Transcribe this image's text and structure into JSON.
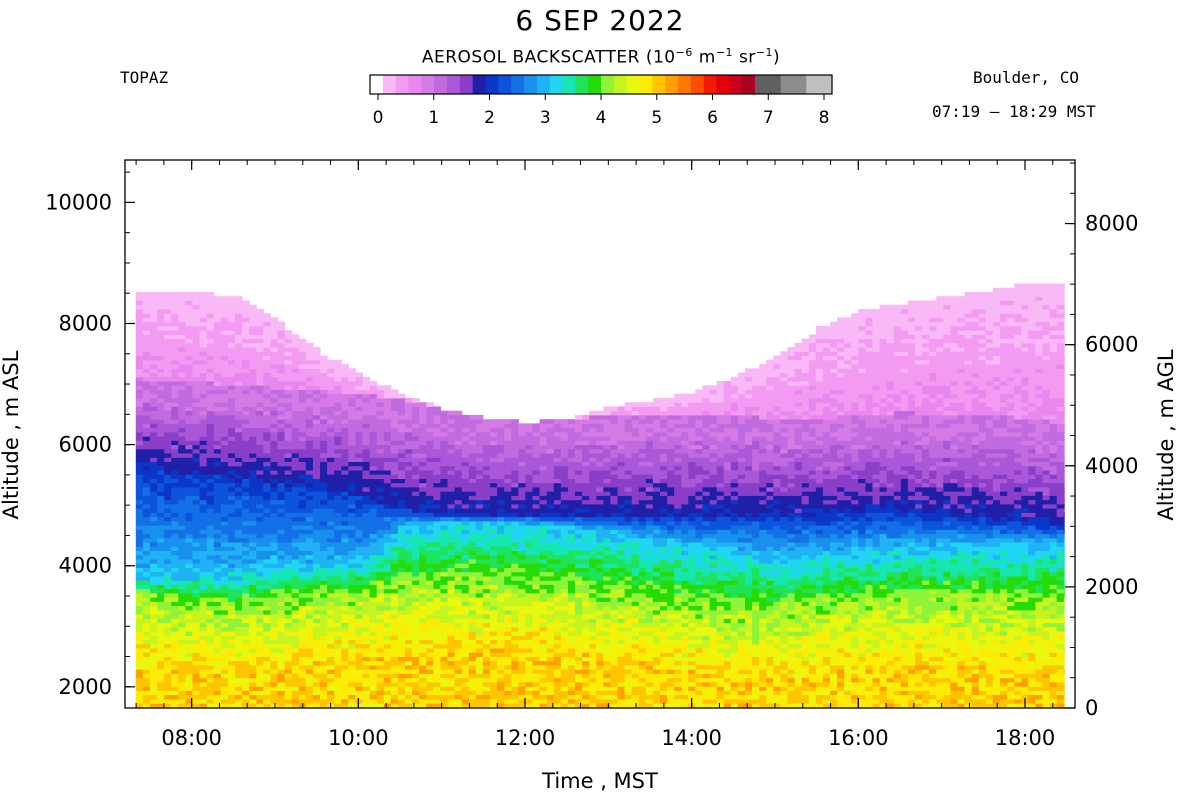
{
  "header": {
    "date_title": "6 SEP 2022",
    "instrument": "TOPAZ",
    "location": "Boulder, CO",
    "time_range": "07:19 – 18:29 MST"
  },
  "colorbar": {
    "title_prefix": "AEROSOL BACKSCATTER (10",
    "title_exp1": "−6",
    "title_mid1": " m",
    "title_exp2": "−1",
    "title_mid2": " sr",
    "title_exp3": "−1",
    "title_suffix": ")",
    "min": 0,
    "max": 8,
    "tick_labels": [
      "0",
      "1",
      "2",
      "3",
      "4",
      "5",
      "6",
      "7",
      "8"
    ],
    "colors": [
      "#ffffff",
      "#f9b9f7",
      "#f39af3",
      "#e987ef",
      "#d67ae6",
      "#c06be0",
      "#aa57d8",
      "#8b3fc8",
      "#1f1fa8",
      "#0a37c8",
      "#0c54dc",
      "#1370e6",
      "#198fee",
      "#1fb2f4",
      "#21d6f2",
      "#16e6b0",
      "#1fe35a",
      "#25db08",
      "#8ff33a",
      "#c4f521",
      "#e8f80f",
      "#ffec05",
      "#ffc500",
      "#ffa000",
      "#ff7800",
      "#ff4d00",
      "#f41a00",
      "#e4000d",
      "#c8001e",
      "#aa0022",
      "#606060",
      "#606060",
      "#8c8c8c",
      "#8c8c8c",
      "#bfbfbf",
      "#bfbfbf"
    ]
  },
  "chart_data": {
    "type": "heatmap",
    "title": "6 SEP 2022",
    "xlabel": "Time , MST",
    "ylabel_left": "Altitude , m ASL",
    "ylabel_right": "Altitude , m AGL",
    "x_range_hours": [
      7.2,
      18.6
    ],
    "x_ticks": [
      "08:00",
      "10:00",
      "12:00",
      "14:00",
      "16:00",
      "18:00"
    ],
    "y_left_range_m": [
      1650,
      10700
    ],
    "y_left_ticks": [
      "2000",
      "4000",
      "6000",
      "8000",
      "10000"
    ],
    "y_right_ticks": [
      "0",
      "2000",
      "4000",
      "6000",
      "8000"
    ],
    "color_scale": "aerosol backscatter 0–8 (10^-6 m^-1 sr^-1)",
    "data_start_time": "07:19",
    "data_end_time": "18:29",
    "layer_profiles": {
      "hours": [
        7.33,
        8,
        8.5,
        9,
        9.5,
        10,
        10.5,
        11,
        11.5,
        12,
        12.5,
        13,
        13.5,
        14,
        14.5,
        15,
        15.5,
        16,
        16.5,
        17,
        17.5,
        18,
        18.45
      ],
      "top_of_data_m": [
        8500,
        8500,
        8400,
        8000,
        7500,
        7100,
        6800,
        6550,
        6400,
        6330,
        6400,
        6600,
        6700,
        6850,
        7100,
        7450,
        7900,
        8200,
        8300,
        8400,
        8500,
        8650,
        8600
      ],
      "residual_layer_top_m": [
        6900,
        6850,
        6800,
        6750,
        6700,
        6650,
        6550,
        6400,
        6300,
        6250,
        6250,
        6300,
        6300,
        6300,
        6300,
        6250,
        6250,
        6300,
        6350,
        6300,
        6300,
        6250,
        6150
      ],
      "blue_layer_bottom_m": [
        5600,
        5500,
        5450,
        5350,
        5250,
        5150,
        4900,
        4800,
        4800,
        4800,
        4800,
        4800,
        4800,
        4800,
        4800,
        4800,
        4800,
        4850,
        4850,
        4800,
        4750,
        4700,
        4600
      ],
      "green_transition_m": [
        3800,
        3800,
        3850,
        3900,
        3950,
        4000,
        4600,
        4700,
        4700,
        4650,
        4600,
        4500,
        4400,
        4300,
        4200,
        4100,
        4150,
        4200,
        4250,
        4300,
        4300,
        4300,
        4300
      ],
      "polluted_top_m": [
        3500,
        3400,
        3350,
        3400,
        3500,
        3600,
        3700,
        3750,
        3750,
        3700,
        3650,
        3550,
        3450,
        3350,
        3300,
        3300,
        3350,
        3400,
        3450,
        3500,
        3450,
        3400,
        3400
      ]
    }
  }
}
